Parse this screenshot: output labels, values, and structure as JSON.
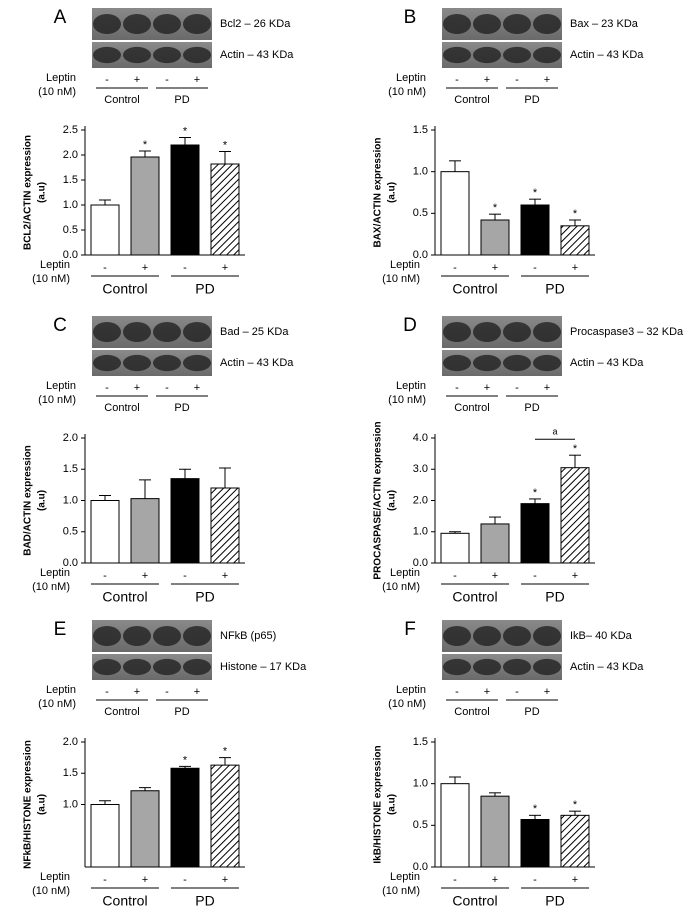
{
  "chart_data": [
    {
      "type": "bar",
      "panel": "A",
      "blots": [
        "Bcl2 – 26 KDa",
        "Actin – 43 KDa"
      ],
      "treatment": [
        "Leptin",
        "(10 nM)"
      ],
      "groups": [
        "Control",
        "PD"
      ],
      "categories": [
        "-",
        "+",
        "-",
        "+"
      ],
      "ylabel": [
        "BCL2/ACTIN expression",
        "(a.u)"
      ],
      "values": [
        1.0,
        1.96,
        2.2,
        1.82
      ],
      "errors": [
        0.1,
        0.12,
        0.15,
        0.25
      ],
      "colors": [
        "#ffffff",
        "#a6a6a6",
        "#000000",
        "#ffffff"
      ],
      "hatch": [
        false,
        false,
        false,
        true
      ],
      "markers": [
        null,
        "*",
        "*",
        "*"
      ],
      "ylim": [
        0,
        2.5
      ],
      "yticks": [
        {
          "value": 0,
          "label": "0.0"
        },
        0.5,
        {
          "value": 1,
          "label": "1.0"
        },
        1.5,
        {
          "value": 2,
          "label": "2.0"
        },
        2.5
      ]
    },
    {
      "type": "bar",
      "panel": "B",
      "blots": [
        "Bax – 23 KDa",
        "Actin – 43 KDa"
      ],
      "treatment": [
        "Leptin",
        "(10 nM)"
      ],
      "groups": [
        "Control",
        "PD"
      ],
      "categories": [
        "-",
        "+",
        "-",
        "+"
      ],
      "ylabel": [
        "BAX/ACTIN expression",
        "(a.u)"
      ],
      "values": [
        1.0,
        0.42,
        0.6,
        0.35
      ],
      "errors": [
        0.13,
        0.07,
        0.07,
        0.07
      ],
      "colors": [
        "#ffffff",
        "#a6a6a6",
        "#000000",
        "#ffffff"
      ],
      "hatch": [
        false,
        false,
        false,
        true
      ],
      "markers": [
        null,
        "*",
        "*",
        "*"
      ],
      "ylim": [
        0,
        1.5
      ],
      "yticks": [
        {
          "value": 0,
          "label": "0.0"
        },
        0.5,
        {
          "value": 1,
          "label": "1.0"
        },
        1.5
      ]
    },
    {
      "type": "bar",
      "panel": "C",
      "blots": [
        "Bad – 25 KDa",
        "Actin – 43 KDa"
      ],
      "treatment": [
        "Leptin",
        "(10 nM)"
      ],
      "groups": [
        "Control",
        "PD"
      ],
      "categories": [
        "-",
        "+",
        "-",
        "+"
      ],
      "ylabel": [
        "BAD/ACTIN expression",
        "(a.u)"
      ],
      "values": [
        1.0,
        1.03,
        1.35,
        1.2
      ],
      "errors": [
        0.08,
        0.3,
        0.15,
        0.32
      ],
      "colors": [
        "#ffffff",
        "#a6a6a6",
        "#000000",
        "#ffffff"
      ],
      "hatch": [
        false,
        false,
        false,
        true
      ],
      "markers": [
        null,
        null,
        null,
        null
      ],
      "ylim": [
        0,
        2
      ],
      "yticks": [
        {
          "value": 0,
          "label": "0.0"
        },
        0.5,
        {
          "value": 1,
          "label": "1.0"
        },
        1.5,
        {
          "value": 2,
          "label": "2.0"
        }
      ]
    },
    {
      "type": "bar",
      "panel": "D",
      "blots": [
        "Procaspase3 – 32 KDa",
        "Actin – 43 KDa"
      ],
      "treatment": [
        "Leptin",
        "(10 nM)"
      ],
      "groups": [
        "Control",
        "PD"
      ],
      "categories": [
        "-",
        "+",
        "-",
        "+"
      ],
      "ylabel": [
        "PROCASPASE/ACTIN expression",
        "(a.u)"
      ],
      "values": [
        0.95,
        1.25,
        1.9,
        3.05
      ],
      "errors": [
        0.05,
        0.22,
        0.15,
        0.4
      ],
      "colors": [
        "#ffffff",
        "#a6a6a6",
        "#000000",
        "#ffffff"
      ],
      "hatch": [
        false,
        false,
        false,
        true
      ],
      "markers": [
        null,
        null,
        "*",
        "*"
      ],
      "bracket": {
        "label": "a",
        "bars": [
          2,
          3
        ]
      },
      "ylim": [
        0,
        4
      ],
      "yticks": [
        {
          "value": 0,
          "label": "0.0"
        },
        {
          "value": 1,
          "label": "1.0"
        },
        {
          "value": 2,
          "label": "2.0"
        },
        {
          "value": 3,
          "label": "3.0"
        },
        {
          "value": 4,
          "label": "4.0"
        }
      ]
    },
    {
      "type": "bar",
      "panel": "E",
      "blots": [
        "NFkB (p65)",
        "Histone – 17 KDa"
      ],
      "treatment": [
        "Leptin",
        "(10 nM)"
      ],
      "groups": [
        "Control",
        "PD"
      ],
      "categories": [
        "-",
        "+",
        "-",
        "+"
      ],
      "ylabel": [
        "NFkB/HISTONE expression",
        "(a.u)"
      ],
      "values": [
        1.0,
        1.22,
        1.58,
        1.63
      ],
      "errors": [
        0.06,
        0.05,
        0.03,
        0.12
      ],
      "colors": [
        "#ffffff",
        "#a6a6a6",
        "#000000",
        "#ffffff"
      ],
      "hatch": [
        false,
        false,
        false,
        true
      ],
      "markers": [
        null,
        null,
        "*",
        "*"
      ],
      "ylim": [
        0,
        2
      ],
      "yticks": [
        {
          "value": 1,
          "label": "1.0"
        },
        1.5,
        {
          "value": 2,
          "label": "2.0"
        }
      ]
    },
    {
      "type": "bar",
      "panel": "F",
      "blots": [
        "IkB– 40 KDa",
        "Actin – 43 KDa"
      ],
      "treatment": [
        "Leptin",
        "(10 nM)"
      ],
      "groups": [
        "Control",
        "PD"
      ],
      "categories": [
        "-",
        "+",
        "-",
        "+"
      ],
      "ylabel": [
        "IkB/HISTONE expression",
        "(a.u)"
      ],
      "values": [
        1.0,
        0.85,
        0.57,
        0.62
      ],
      "errors": [
        0.08,
        0.04,
        0.05,
        0.05
      ],
      "colors": [
        "#ffffff",
        "#a6a6a6",
        "#000000",
        "#ffffff"
      ],
      "hatch": [
        false,
        false,
        false,
        true
      ],
      "markers": [
        null,
        null,
        "*",
        "*"
      ],
      "ylim": [
        0,
        1.5
      ],
      "yticks": [
        {
          "value": 0,
          "label": "0.0"
        },
        0.5,
        {
          "value": 1,
          "label": "1.0"
        },
        1.5
      ]
    }
  ]
}
